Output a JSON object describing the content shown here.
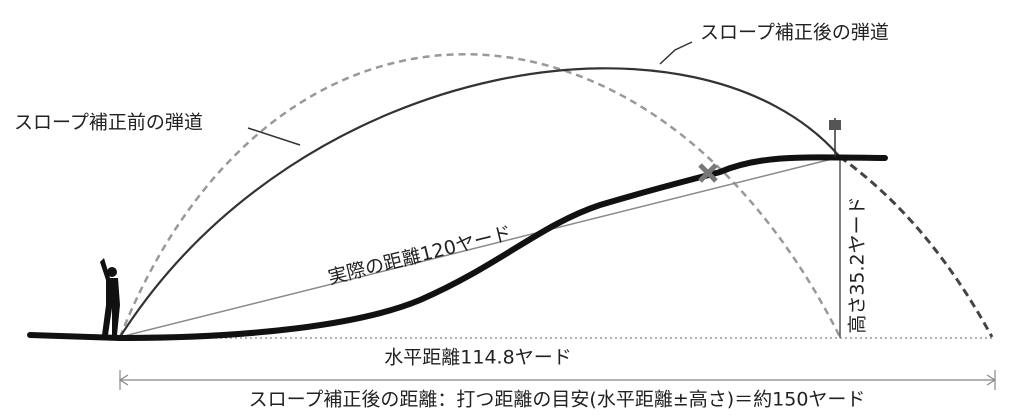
{
  "labels": {
    "after_trajectory": "スロープ補正後の弾道",
    "before_trajectory": "スロープ補正前の弾道",
    "actual_distance": "実際の距離120ヤード",
    "height": "高さ35.2ヤード",
    "horizontal_distance": "水平距離114.8ヤード",
    "corrected_distance": "スロープ補正後の距離：打つ距離の目安(水平距離±高さ)＝約150ヤード"
  }
}
